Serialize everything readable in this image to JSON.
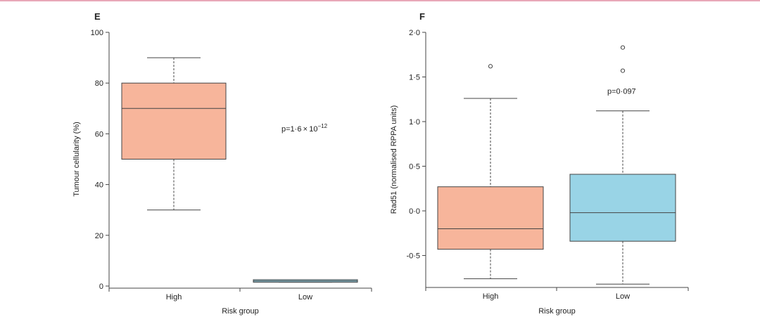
{
  "colors": {
    "high_fill": "#f7b59b",
    "low_fill": "#99d4e6",
    "top_rule": "#e8a7b8"
  },
  "chart_data": [
    {
      "type": "box",
      "panel_label": "E",
      "xlabel": "Risk group",
      "ylabel": "Tumour cellularity (%)",
      "ylim": [
        0,
        100
      ],
      "yticks": [
        0,
        20,
        40,
        60,
        80,
        100
      ],
      "ytick_labels": [
        "0",
        "20",
        "40",
        "60",
        "80",
        "100"
      ],
      "categories": [
        "High",
        "Low"
      ],
      "annotation": {
        "text_main": "p=1·6 × 10",
        "text_sup": "−12",
        "y": 61
      },
      "boxes": [
        {
          "category": "High",
          "whisker_low": 30,
          "q1": 50,
          "median": 70,
          "q3": 80,
          "whisker_high": 90,
          "outliers": []
        },
        {
          "category": "Low",
          "whisker_low": 1.5,
          "q1": 1.5,
          "median": 2,
          "q3": 2.5,
          "whisker_high": 2.5,
          "outliers": []
        }
      ]
    },
    {
      "type": "box",
      "panel_label": "F",
      "xlabel": "Risk group",
      "ylabel": "Rad51 (normalised RPPA units)",
      "ylim": [
        -0.85,
        2.0
      ],
      "yticks": [
        -0.5,
        0,
        0.5,
        1.0,
        1.5,
        2.0
      ],
      "ytick_labels": [
        "-0·5",
        "0·0",
        "0·5",
        "1·0",
        "1·5",
        "2·0"
      ],
      "categories": [
        "High",
        "Low"
      ],
      "annotation": {
        "text_main": "p=0·097",
        "text_sup": "",
        "y": 1.31
      },
      "boxes": [
        {
          "category": "High",
          "whisker_low": -0.76,
          "q1": -0.43,
          "median": -0.2,
          "q3": 0.27,
          "whisker_high": 1.26,
          "outliers": [
            1.62
          ]
        },
        {
          "category": "Low",
          "whisker_low": -0.82,
          "q1": -0.34,
          "median": -0.02,
          "q3": 0.41,
          "whisker_high": 1.12,
          "outliers": [
            1.57,
            1.83
          ]
        }
      ]
    }
  ]
}
